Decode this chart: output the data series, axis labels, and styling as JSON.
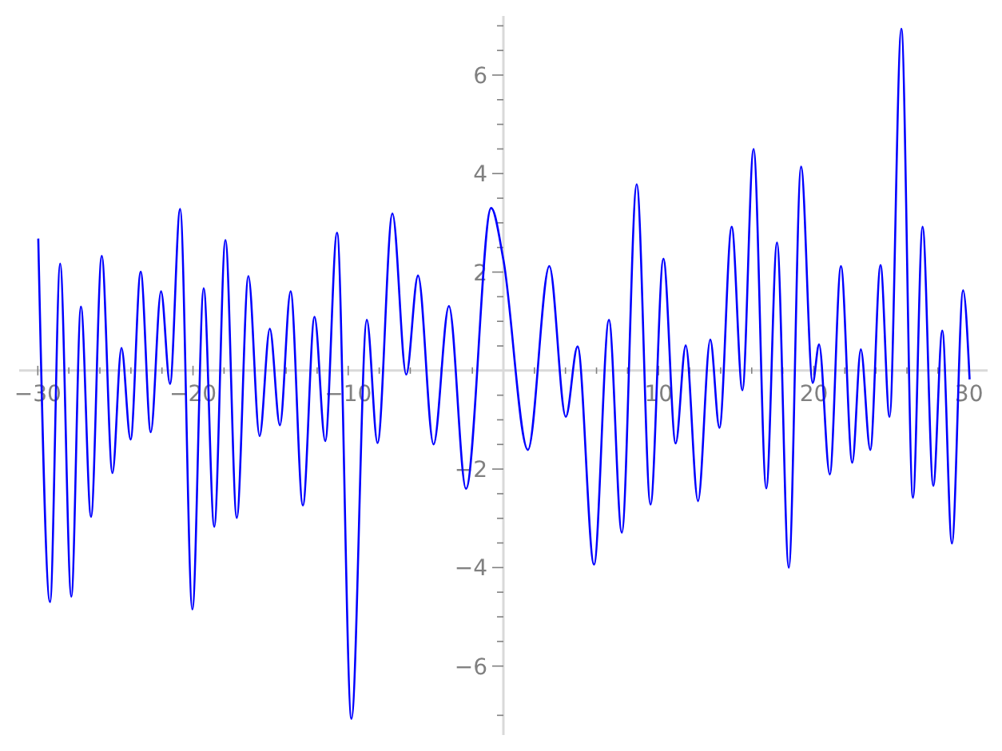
{
  "chart_data": {
    "type": "line",
    "color": "#0000ff",
    "x": [
      -29.97,
      -29.21,
      -28.56,
      -27.84,
      -27.22,
      -26.57,
      -25.88,
      -25.19,
      -24.61,
      -24.02,
      -23.37,
      -22.72,
      -22.06,
      -21.48,
      -20.83,
      -20.04,
      -19.31,
      -18.63,
      -17.91,
      -17.18,
      -16.43,
      -15.71,
      -15.05,
      -14.4,
      -13.71,
      -12.92,
      -12.17,
      -11.48,
      -10.72,
      -9.79,
      -8.8,
      -8.11,
      -7.15,
      -6.26,
      -5.5,
      -4.5,
      -3.51,
      -2.41,
      -0.79,
      0,
      1.58,
      2.96,
      4.02,
      4.78,
      5.84,
      6.8,
      7.63,
      8.59,
      9.48,
      10.31,
      11.1,
      11.75,
      12.54,
      13.33,
      13.92,
      14.71,
      15.4,
      16.12,
      16.94,
      17.63,
      18.39,
      19.18,
      19.93,
      20.34,
      21.03,
      21.75,
      22.48,
      23.03,
      23.64,
      24.3,
      24.88,
      25.64,
      26.39,
      27.01,
      27.7,
      28.28,
      28.9,
      29.62,
      30.04
    ],
    "values": [
      2.68,
      -4.7,
      2.17,
      -4.59,
      1.3,
      -2.97,
      2.33,
      -2.08,
      0.46,
      -1.4,
      2.01,
      -1.25,
      1.61,
      -0.27,
      3.28,
      -4.85,
      1.67,
      -3.17,
      2.65,
      -2.99,
      1.92,
      -1.33,
      0.85,
      -1.11,
      1.61,
      -2.74,
      1.09,
      -1.43,
      2.8,
      -7.07,
      1.03,
      -1.47,
      3.19,
      -0.08,
      1.93,
      -1.5,
      1.31,
      -2.4,
      3.3,
      2.25,
      -1.61,
      2.12,
      -0.94,
      0.49,
      -3.94,
      1.03,
      -3.29,
      3.78,
      -2.72,
      2.27,
      -1.48,
      0.51,
      -2.65,
      0.63,
      -1.16,
      2.92,
      -0.4,
      4.5,
      -2.39,
      2.6,
      -4,
      4.14,
      -0.25,
      0.53,
      -2.11,
      2.12,
      -1.87,
      0.43,
      -1.61,
      2.14,
      -0.94,
      6.94,
      -2.58,
      2.92,
      -2.34,
      0.81,
      -3.51,
      1.63,
      -0.18
    ],
    "xlim": [
      -31.2,
      31.2
    ],
    "xticks": [
      -30,
      {
        "value": -28,
        "label": null
      },
      {
        "value": -26,
        "label": null
      },
      {
        "value": -24,
        "label": null
      },
      {
        "value": -22,
        "label": null
      },
      -20,
      {
        "value": -18,
        "label": null
      },
      {
        "value": -16,
        "label": null
      },
      {
        "value": -14,
        "label": null
      },
      {
        "value": -12,
        "label": null
      },
      -10,
      {
        "value": -8,
        "label": null
      },
      {
        "value": -6,
        "label": null
      },
      {
        "value": -4,
        "label": null
      },
      {
        "value": -2,
        "label": null
      },
      {
        "value": 2,
        "label": null
      },
      {
        "value": 4,
        "label": null
      },
      {
        "value": 6,
        "label": null
      },
      {
        "value": 8,
        "label": null
      },
      10,
      {
        "value": 12,
        "label": null
      },
      {
        "value": 14,
        "label": null
      },
      {
        "value": 16,
        "label": null
      },
      {
        "value": 18,
        "label": null
      },
      20,
      {
        "value": 22,
        "label": null
      },
      {
        "value": 24,
        "label": null
      },
      {
        "value": 26,
        "label": null
      },
      {
        "value": 28,
        "label": null
      },
      30
    ],
    "ylim": [
      -7.4,
      7.2
    ],
    "yticks": [
      {
        "value": -7,
        "label": null
      },
      -6,
      {
        "value": -5.5,
        "label": null
      },
      {
        "value": -5,
        "label": null
      },
      {
        "value": -4.5,
        "label": null
      },
      -4,
      {
        "value": -3.5,
        "label": null
      },
      {
        "value": -3,
        "label": null
      },
      {
        "value": -2.5,
        "label": null
      },
      -2,
      {
        "value": -1.5,
        "label": null
      },
      {
        "value": -1,
        "label": null
      },
      {
        "value": -0.5,
        "label": null
      },
      {
        "value": 0.5,
        "label": null
      },
      {
        "value": 1,
        "label": null
      },
      {
        "value": 1.5,
        "label": null
      },
      2,
      {
        "value": 2.5,
        "label": null
      },
      {
        "value": 3,
        "label": null
      },
      {
        "value": 3.5,
        "label": null
      },
      4,
      {
        "value": 4.5,
        "label": null
      },
      {
        "value": 5,
        "label": null
      },
      {
        "value": 5.5,
        "label": null
      },
      6,
      {
        "value": 6.5,
        "label": null
      },
      {
        "value": 7,
        "label": null
      }
    ]
  }
}
